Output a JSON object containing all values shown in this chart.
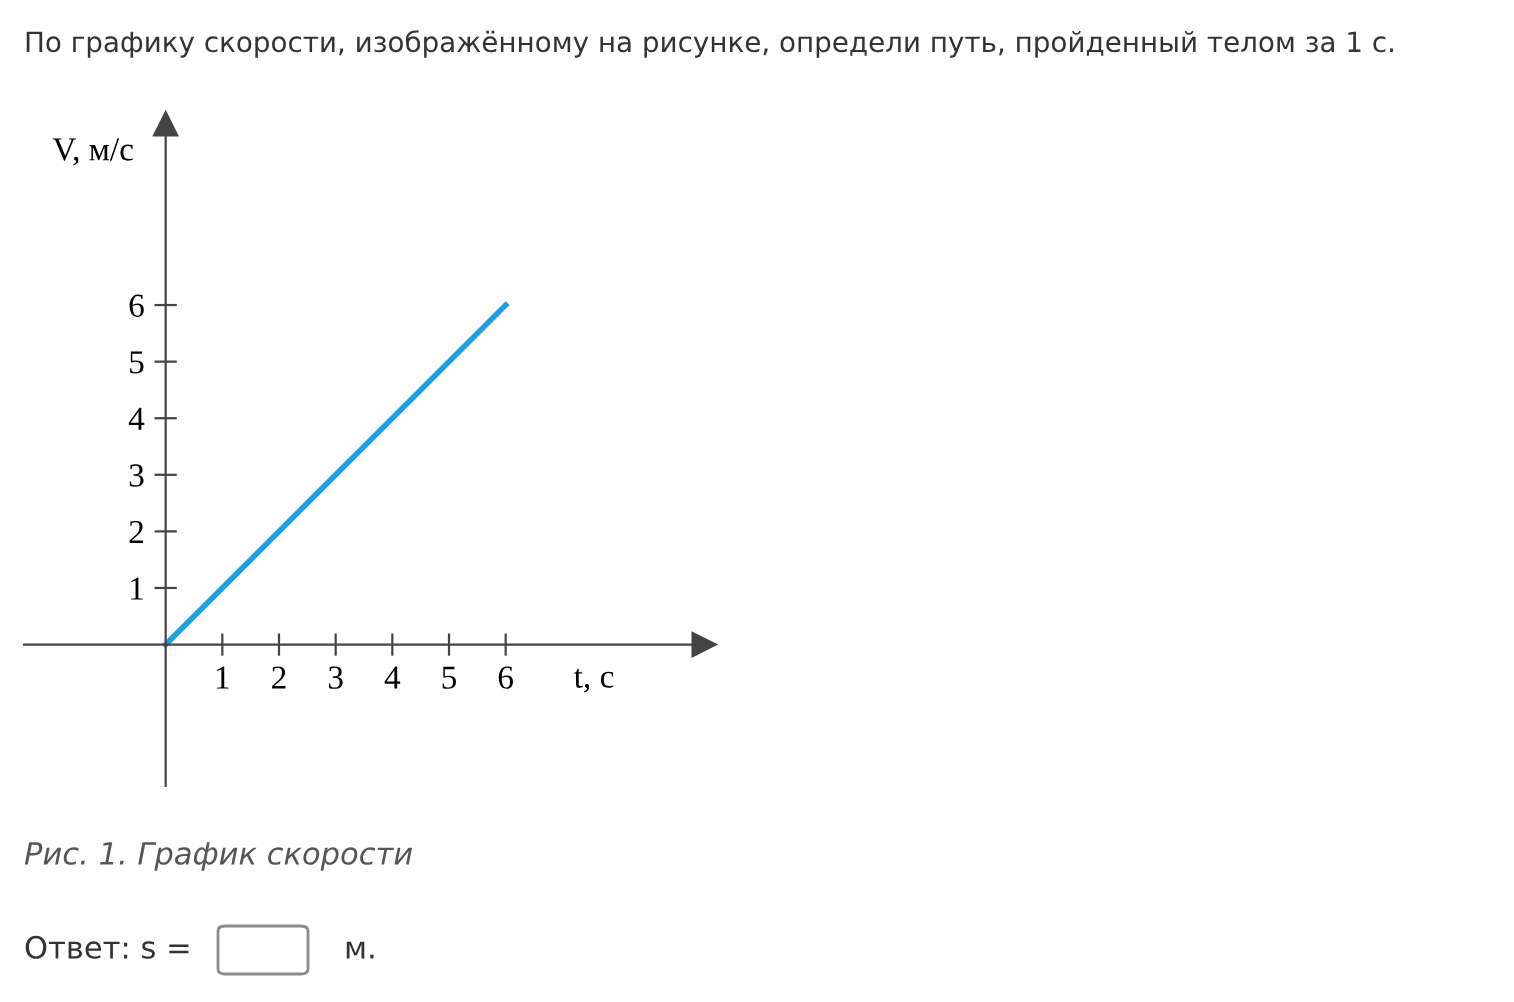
{
  "chart_data": {
    "type": "line",
    "title": "По графику скорости, изображённому на рисунке, определи путь, пройденный телом за 1 с.",
    "xlabel": "t, с",
    "ylabel": "V, м/с",
    "x": [
      0,
      6
    ],
    "series": [
      {
        "color": "#1ba1e2",
        "values": [
          0,
          6
        ]
      }
    ],
    "xlim": [
      -2.5,
      9.5
    ],
    "ylim": [
      -2.5,
      9.2
    ],
    "xticks": [
      1,
      2,
      3,
      4,
      5,
      6
    ],
    "yticks": [
      1,
      2,
      3,
      4,
      5,
      6
    ],
    "grid": false,
    "legend": false,
    "marker": "none",
    "line_style": "solid",
    "annotations": [
      "Рис. 1. График скорости",
      "Ответ: s =",
      "м."
    ]
  }
}
